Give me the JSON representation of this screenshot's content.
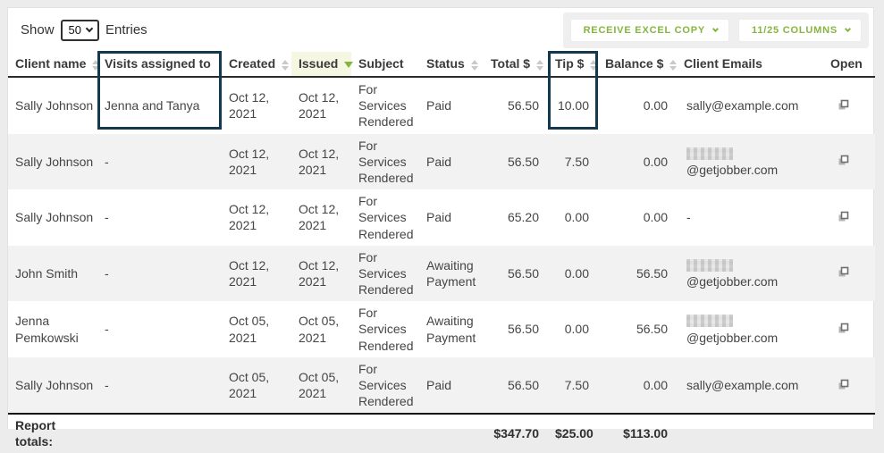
{
  "page": {
    "colors": {
      "green": "#84b63f",
      "navy": "#14394e",
      "issued-bg": "#f5f7e3",
      "stripe": "#f2f2f2"
    },
    "topbar": {
      "show_label": "Show",
      "entries_value": "50",
      "entries_label": "Entries",
      "buttons": [
        {
          "label": "RECEIVE EXCEL COPY"
        },
        {
          "label": "11/25 COLUMNS"
        }
      ]
    }
  },
  "table": {
    "columns": [
      {
        "label": "Client name",
        "sort": "both"
      },
      {
        "label": "Visits assigned to",
        "sort": "none"
      },
      {
        "label": "Created",
        "sort": "both"
      },
      {
        "label": "Issued",
        "sort": "desc",
        "highlighted": true
      },
      {
        "label": "Subject",
        "sort": "none"
      },
      {
        "label": "Status",
        "sort": "both"
      },
      {
        "label": "Total $",
        "sort": "both",
        "numeric": true
      },
      {
        "label": "Tip $",
        "sort": "both",
        "numeric": true
      },
      {
        "label": "Balance $",
        "sort": "both",
        "numeric": true
      },
      {
        "label": "Client Emails",
        "sort": "none"
      },
      {
        "label": "Open",
        "sort": "none"
      }
    ],
    "rows": [
      {
        "client": "Sally Johnson",
        "visits": "Jenna and Tanya",
        "created": "Oct 12, 2021",
        "issued": "Oct 12, 2021",
        "subject": "For Services Rendered",
        "status": "Paid",
        "total": "56.50",
        "tip": "10.00",
        "balance": "0.00",
        "email": "sally@example.com",
        "email_redacted": false
      },
      {
        "client": "Sally Johnson",
        "visits": "-",
        "created": "Oct 12, 2021",
        "issued": "Oct 12, 2021",
        "subject": "For Services Rendered",
        "status": "Paid",
        "total": "56.50",
        "tip": "7.50",
        "balance": "0.00",
        "email": "@getjobber.com",
        "email_redacted": true
      },
      {
        "client": "Sally Johnson",
        "visits": "-",
        "created": "Oct 12, 2021",
        "issued": "Oct 12, 2021",
        "subject": "For Services Rendered",
        "status": "Paid",
        "total": "65.20",
        "tip": "0.00",
        "balance": "0.00",
        "email": "-",
        "email_redacted": false
      },
      {
        "client": "John Smith",
        "visits": "-",
        "created": "Oct 12, 2021",
        "issued": "Oct 12, 2021",
        "subject": "For Services Rendered",
        "status": "Awaiting Payment",
        "total": "56.50",
        "tip": "0.00",
        "balance": "56.50",
        "email": "@getjobber.com",
        "email_redacted": true
      },
      {
        "client": "Jenna Pemkowski",
        "visits": "-",
        "created": "Oct 05, 2021",
        "issued": "Oct 05, 2021",
        "subject": "For Services Rendered",
        "status": "Awaiting Payment",
        "total": "56.50",
        "tip": "0.00",
        "balance": "56.50",
        "email": "@getjobber.com",
        "email_redacted": true
      },
      {
        "client": "Sally Johnson",
        "visits": "-",
        "created": "Oct 05, 2021",
        "issued": "Oct 05, 2021",
        "subject": "For Services Rendered",
        "status": "Paid",
        "total": "56.50",
        "tip": "7.50",
        "balance": "0.00",
        "email": "sally@example.com",
        "email_redacted": false
      }
    ],
    "totals": {
      "label": "Report totals:",
      "total": "$347.70",
      "tip": "$25.00",
      "balance": "$113.00"
    }
  }
}
